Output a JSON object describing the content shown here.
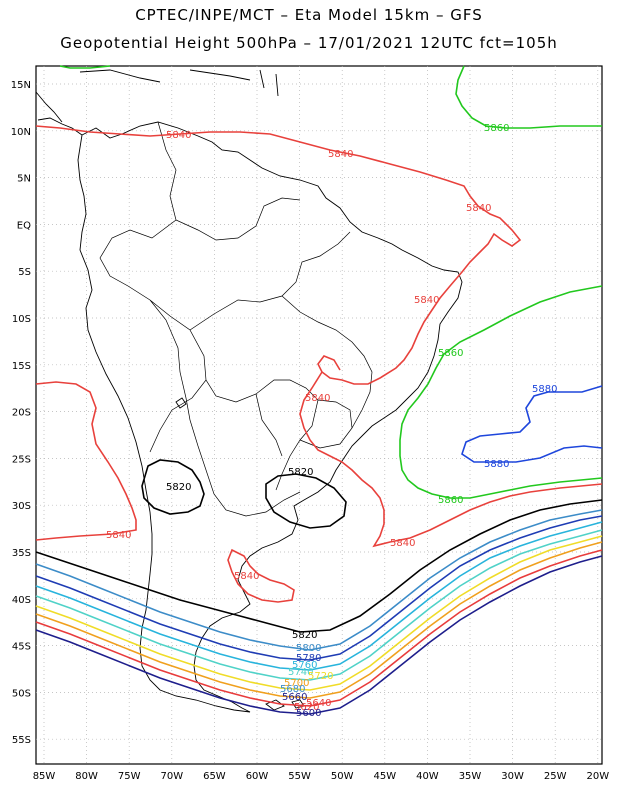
{
  "header": {
    "title_line1": "CPTEC/INPE/MCT –  Eta Model 15km – GFS",
    "title_line2": "Geopotential Height 500hPa – 17/01/2021 12UTC fct=105h"
  },
  "axes": {
    "lat_labels": [
      "15N",
      "10N",
      "5N",
      "EQ",
      "5S",
      "10S",
      "15S",
      "20S",
      "25S",
      "30S",
      "35S",
      "40S",
      "45S",
      "50S",
      "55S"
    ],
    "lon_labels": [
      "85W",
      "80W",
      "75W",
      "70W",
      "65W",
      "60W",
      "55W",
      "50W",
      "45W",
      "40W",
      "35W",
      "30W",
      "25W",
      "20W"
    ]
  },
  "colors": {
    "c5840": "#e8413c",
    "c5860": "#22c81e",
    "c5880": "#1e46dc",
    "c5820": "#000000",
    "c5800": "#3c8cc8",
    "c5780": "#1e3cb4",
    "c5760": "#28b4dc",
    "c5740": "#50d2c8",
    "c5720": "#f0dc28",
    "c5700": "#f0a01e",
    "c5680": "#e83c3c",
    "c5660": "#1e1e8c",
    "coast": "#000000",
    "grid": "#b4b4b4"
  },
  "contour_labels": [
    {
      "key": "l5840a",
      "text": "5840"
    },
    {
      "key": "l5840b",
      "text": "5840"
    },
    {
      "key": "l5840c",
      "text": "5840"
    },
    {
      "key": "l5840d",
      "text": "5840"
    },
    {
      "key": "l5840e",
      "text": "5840"
    },
    {
      "key": "l5840f",
      "text": "5840"
    },
    {
      "key": "l5840g",
      "text": "5840"
    },
    {
      "key": "l5840h",
      "text": "5840"
    },
    {
      "key": "l5860a",
      "text": "5860"
    },
    {
      "key": "l5860b",
      "text": "5860"
    },
    {
      "key": "l5860c",
      "text": "5860"
    },
    {
      "key": "l5880a",
      "text": "5880"
    },
    {
      "key": "l5880b",
      "text": "5880"
    },
    {
      "key": "l5820a",
      "text": "5820"
    },
    {
      "key": "l5820b",
      "text": "5820"
    },
    {
      "key": "l5820c",
      "text": "5820"
    },
    {
      "key": "l5800a",
      "text": "5800"
    },
    {
      "key": "l5780a",
      "text": "5780"
    },
    {
      "key": "l5760a",
      "text": "5760"
    },
    {
      "key": "l5740a",
      "text": "5740"
    },
    {
      "key": "l5720a",
      "text": "5720"
    },
    {
      "key": "l5700a",
      "text": "5700"
    },
    {
      "key": "l5680a",
      "text": "5680"
    },
    {
      "key": "l5660a",
      "text": "5660"
    },
    {
      "key": "l5640a",
      "text": "5640"
    },
    {
      "key": "l5620a",
      "text": "5620"
    },
    {
      "key": "l5600a",
      "text": "5600"
    }
  ]
}
